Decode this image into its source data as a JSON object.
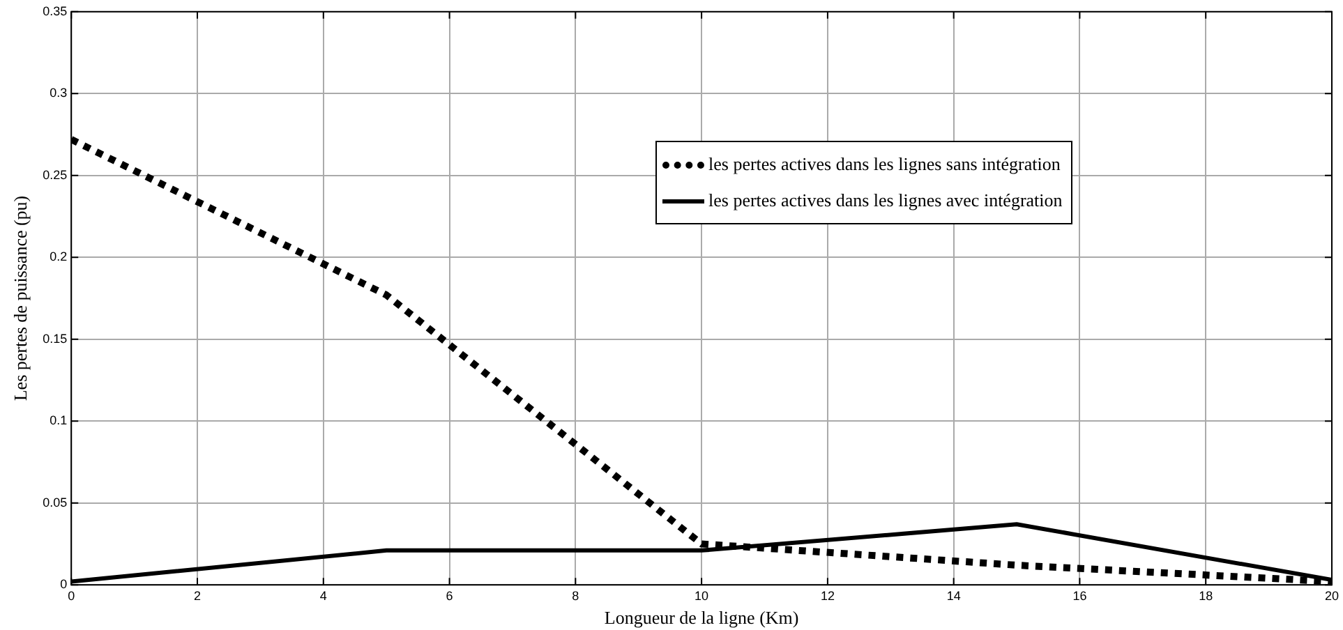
{
  "chart_data": {
    "type": "line",
    "xlabel": "Longueur de la ligne (Km)",
    "ylabel": "Les pertes de puissance (pu)",
    "x": [
      0,
      5,
      10,
      15,
      20
    ],
    "series": [
      {
        "name": "les pertes actives dans les lignes sans intégration",
        "color": "#000000",
        "line_style": "dotted",
        "values": [
          0.272,
          0.177,
          0.025,
          0.012,
          0.002
        ]
      },
      {
        "name": "les pertes actives dans les lignes avec intégration",
        "color": "#000000",
        "line_style": "solid",
        "values": [
          0.002,
          0.021,
          0.021,
          0.037,
          0.003
        ]
      }
    ],
    "xlim": [
      0,
      20
    ],
    "xticks": [
      0,
      2,
      4,
      6,
      8,
      10,
      12,
      14,
      16,
      18,
      20
    ],
    "ylim": [
      0,
      0.35
    ],
    "yticks": [
      0,
      0.05,
      0.1,
      0.15,
      0.2,
      0.25,
      0.3,
      0.35
    ],
    "grid": true,
    "legend": "top right",
    "marker": "none"
  }
}
